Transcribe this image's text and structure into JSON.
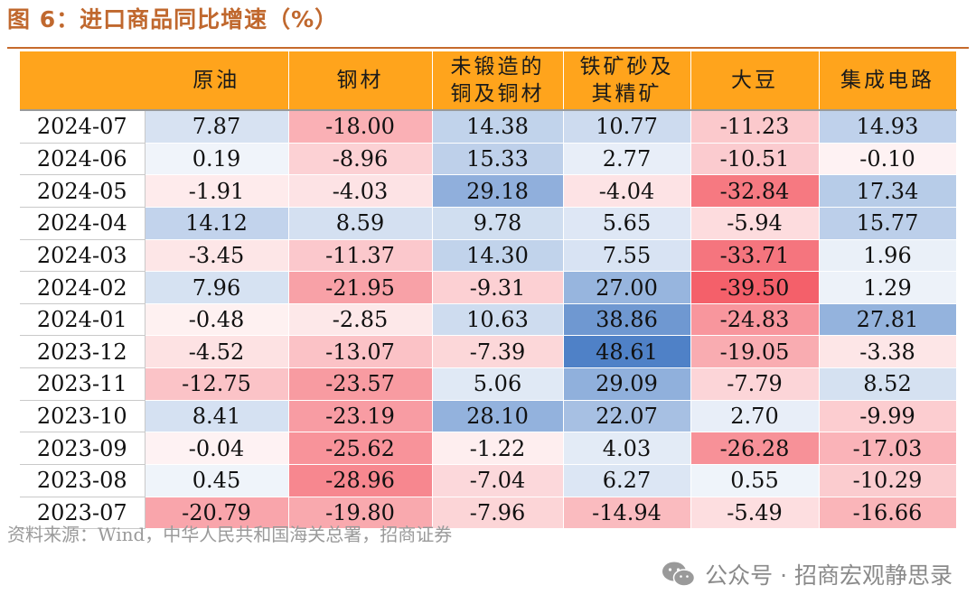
{
  "title": "图 6：进口商品同比增速（%）",
  "source": "资料来源：Wind，中华人民共和国海关总署，招商证券",
  "watermark": {
    "text": "公众号 · 招商宏观静思录",
    "icon": "wechat-icon"
  },
  "colors": {
    "header": "#ffa41c",
    "title": "#c0682e",
    "positive": "#4f81c7",
    "negative": "#f4606a"
  },
  "chart_data": {
    "type": "table",
    "title": "图 6：进口商品同比增速（%）",
    "columns": [
      "原油",
      "钢材",
      "未锻造的铜及铜材",
      "铁矿砂及其精矿",
      "大豆",
      "集成电路"
    ],
    "column_lines": [
      [
        "原油"
      ],
      [
        "钢材"
      ],
      [
        "未锻造的",
        "铜及铜材"
      ],
      [
        "铁矿砂及",
        "其精矿"
      ],
      [
        "大豆"
      ],
      [
        "集成电路"
      ]
    ],
    "rows": [
      {
        "date": "2024-07",
        "values": [
          7.87,
          -18.0,
          14.38,
          10.77,
          -11.23,
          14.93
        ]
      },
      {
        "date": "2024-06",
        "values": [
          0.19,
          -8.96,
          15.33,
          2.77,
          -10.51,
          -0.1
        ]
      },
      {
        "date": "2024-05",
        "values": [
          -1.91,
          -4.03,
          29.18,
          -4.04,
          -32.84,
          17.34
        ]
      },
      {
        "date": "2024-04",
        "values": [
          14.12,
          8.59,
          9.78,
          5.65,
          -5.94,
          15.77
        ]
      },
      {
        "date": "2024-03",
        "values": [
          -3.45,
          -11.37,
          14.3,
          7.55,
          -33.71,
          1.96
        ]
      },
      {
        "date": "2024-02",
        "values": [
          7.96,
          -21.95,
          -9.31,
          27.0,
          -39.5,
          1.29
        ]
      },
      {
        "date": "2024-01",
        "values": [
          -0.48,
          -2.85,
          10.63,
          38.86,
          -24.83,
          27.81
        ]
      },
      {
        "date": "2023-12",
        "values": [
          -4.52,
          -13.07,
          -7.39,
          48.61,
          -19.05,
          -3.38
        ]
      },
      {
        "date": "2023-11",
        "values": [
          -12.75,
          -23.57,
          5.06,
          29.09,
          -7.79,
          8.52
        ]
      },
      {
        "date": "2023-10",
        "values": [
          8.41,
          -23.19,
          28.1,
          22.07,
          2.7,
          -9.99
        ]
      },
      {
        "date": "2023-09",
        "values": [
          -0.04,
          -25.62,
          -1.22,
          4.03,
          -26.28,
          -17.03
        ]
      },
      {
        "date": "2023-08",
        "values": [
          0.45,
          -28.96,
          -7.04,
          6.27,
          0.55,
          -10.29
        ]
      },
      {
        "date": "2023-07",
        "values": [
          -20.79,
          -19.8,
          -7.96,
          -14.94,
          -5.49,
          -16.66
        ]
      }
    ],
    "color_scale": {
      "min": -39.5,
      "max": 48.61,
      "mid": 0
    }
  }
}
